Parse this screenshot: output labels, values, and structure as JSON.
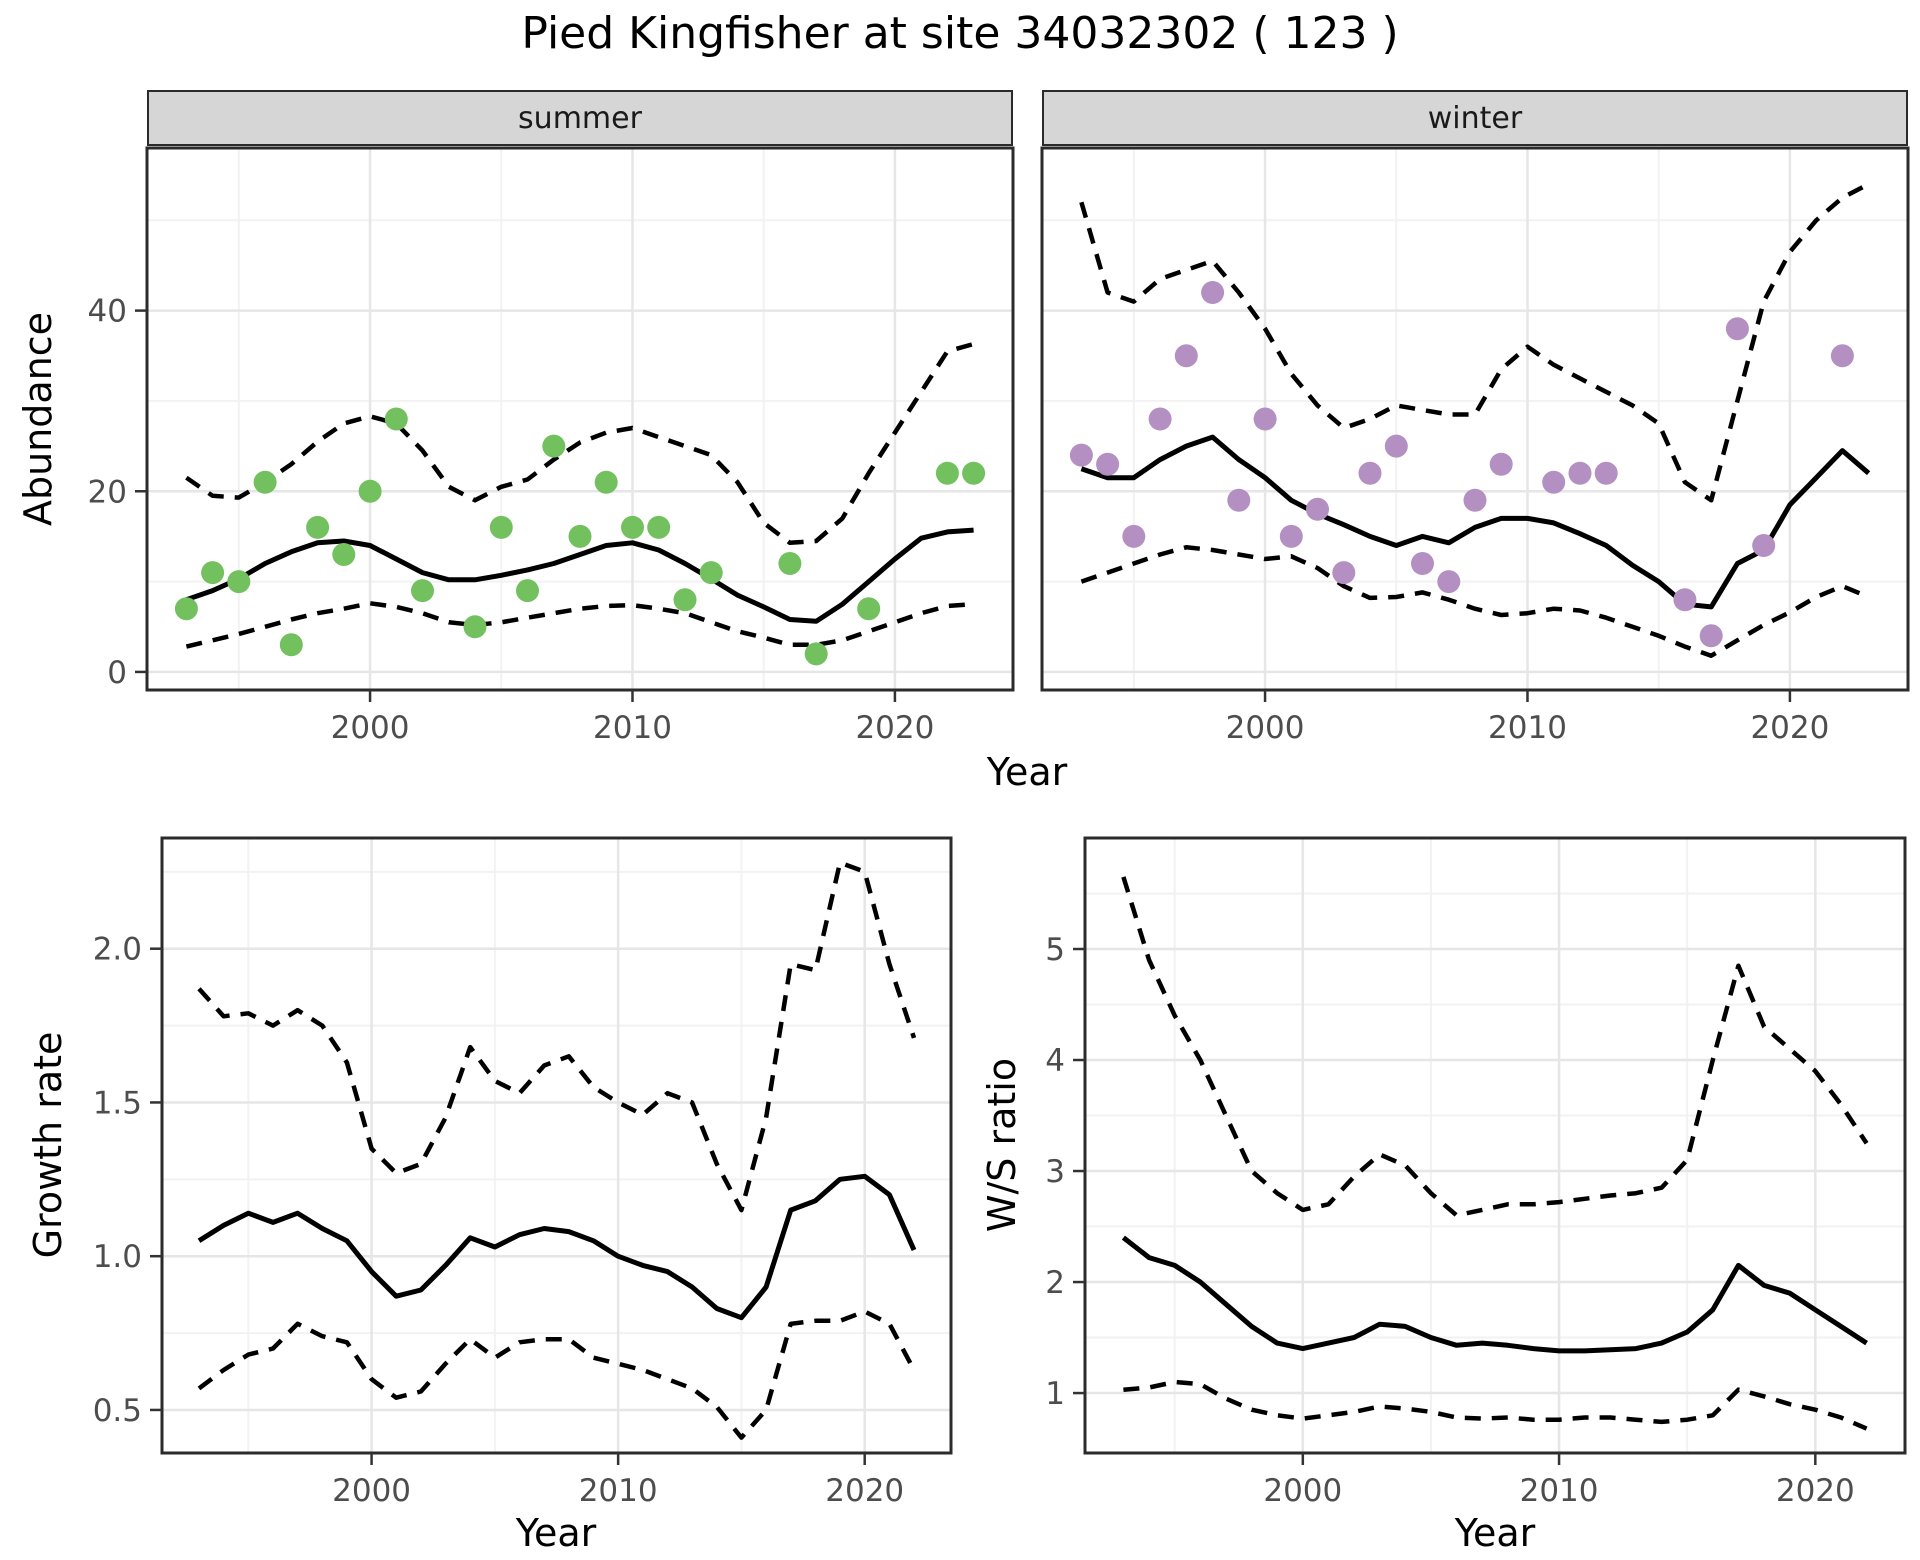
{
  "title": "Pied Kingfisher at site 34032302 ( 123 )",
  "labels": {
    "x": "Year",
    "abundance": "Abundance",
    "growth": "Growth rate",
    "ws": "W/S ratio"
  },
  "facets": [
    "summer",
    "winter"
  ],
  "colors": {
    "summer_point": "#72c05e",
    "winter_point": "#b48fc1",
    "strip_bg": "#d6d6d6",
    "panel_border": "#2b2b2b",
    "grid_major": "#e6e6e6",
    "grid_minor": "#f2f2f2",
    "line": "#000000",
    "tick_text": "#4d4d4d"
  },
  "chart_data": [
    {
      "id": "abundance-summer",
      "type": "line",
      "facet": "summer",
      "ylabel": "Abundance",
      "xlabel": "Year",
      "xlim": [
        1991.5,
        2024.5
      ],
      "ylim": [
        -2,
        58
      ],
      "xticks": [
        2000,
        2010,
        2020
      ],
      "xtick_labels": [
        "2000",
        "2010",
        "2020"
      ],
      "xminor": [
        1995,
        2005,
        2015
      ],
      "yticks": [
        0,
        20,
        40
      ],
      "ytick_labels": [
        "0",
        "20",
        "40"
      ],
      "yminor": [
        10,
        30,
        50
      ],
      "years": [
        1993,
        1994,
        1995,
        1996,
        1997,
        1998,
        1999,
        2000,
        2001,
        2002,
        2003,
        2004,
        2005,
        2006,
        2007,
        2008,
        2009,
        2010,
        2011,
        2012,
        2013,
        2014,
        2015,
        2016,
        2017,
        2018,
        2019,
        2020,
        2021,
        2022,
        2023
      ],
      "series": [
        {
          "name": "mean",
          "style": "solid",
          "values": [
            8.0,
            9.0,
            10.3,
            12.0,
            13.3,
            14.3,
            14.5,
            14.0,
            12.5,
            11.0,
            10.2,
            10.2,
            10.7,
            11.3,
            12.0,
            13.0,
            14.0,
            14.3,
            13.5,
            12.0,
            10.3,
            8.5,
            7.2,
            5.8,
            5.6,
            7.5,
            10.0,
            12.5,
            14.8,
            15.5,
            15.7
          ]
        },
        {
          "name": "lower_ci",
          "style": "dashed",
          "values": [
            2.8,
            3.5,
            4.2,
            5.0,
            5.8,
            6.5,
            7.0,
            7.6,
            7.2,
            6.5,
            5.5,
            5.2,
            5.5,
            6.0,
            6.5,
            7.0,
            7.3,
            7.4,
            7.0,
            6.5,
            5.5,
            4.5,
            3.8,
            3.0,
            3.0,
            3.5,
            4.5,
            5.5,
            6.5,
            7.3,
            7.5
          ]
        },
        {
          "name": "upper_ci",
          "style": "dashed",
          "values": [
            21.5,
            19.5,
            19.3,
            21.0,
            23.0,
            25.5,
            27.5,
            28.3,
            27.5,
            24.5,
            20.5,
            19.0,
            20.5,
            21.3,
            23.5,
            25.4,
            26.5,
            27.0,
            26.0,
            25.0,
            24.0,
            21.0,
            16.5,
            14.3,
            14.5,
            17.0,
            22.0,
            26.5,
            31.0,
            35.5,
            36.3
          ]
        }
      ],
      "points": {
        "color_key": "summer_point",
        "years": [
          1993,
          1994,
          1995,
          1996,
          1997,
          1998,
          1999,
          2000,
          2001,
          2002,
          2004,
          2005,
          2006,
          2007,
          2008,
          2009,
          2010,
          2011,
          2012,
          2013,
          2016,
          2017,
          2019,
          2022,
          2023
        ],
        "values": [
          7,
          11,
          10,
          21,
          3,
          16,
          13,
          20,
          28,
          9,
          5,
          16,
          9,
          25,
          15,
          21,
          16,
          16,
          8,
          11,
          12,
          2,
          7,
          22,
          22
        ]
      }
    },
    {
      "id": "abundance-winter",
      "type": "line",
      "facet": "winter",
      "ylabel": "Abundance",
      "xlabel": "Year",
      "xlim": [
        1991.5,
        2024.5
      ],
      "ylim": [
        -2,
        58
      ],
      "xticks": [
        2000,
        2010,
        2020
      ],
      "xtick_labels": [
        "2000",
        "2010",
        "2020"
      ],
      "xminor": [
        1995,
        2005,
        2015
      ],
      "yticks": [
        0,
        20,
        40
      ],
      "ytick_labels": [
        "0",
        "20",
        "40"
      ],
      "yminor": [
        10,
        30,
        50
      ],
      "years": [
        1993,
        1994,
        1995,
        1996,
        1997,
        1998,
        1999,
        2000,
        2001,
        2002,
        2003,
        2004,
        2005,
        2006,
        2007,
        2008,
        2009,
        2010,
        2011,
        2012,
        2013,
        2014,
        2015,
        2016,
        2017,
        2018,
        2019,
        2020,
        2021,
        2022,
        2023
      ],
      "series": [
        {
          "name": "mean",
          "style": "solid",
          "values": [
            22.5,
            21.5,
            21.5,
            23.5,
            25.0,
            26.0,
            23.5,
            21.5,
            19.0,
            17.5,
            16.3,
            15.0,
            14.0,
            15.0,
            14.3,
            16.0,
            17.0,
            17.0,
            16.5,
            15.3,
            14.0,
            11.8,
            10.0,
            7.5,
            7.2,
            12.0,
            13.5,
            18.5,
            21.5,
            24.5,
            22.0
          ]
        },
        {
          "name": "lower_ci",
          "style": "dashed",
          "values": [
            10.0,
            11.0,
            12.0,
            13.0,
            13.8,
            13.5,
            13.0,
            12.5,
            12.8,
            11.5,
            9.5,
            8.2,
            8.3,
            8.8,
            8.0,
            7.0,
            6.3,
            6.5,
            7.0,
            6.8,
            6.0,
            5.0,
            4.0,
            2.8,
            1.8,
            3.5,
            5.2,
            6.6,
            8.3,
            9.5,
            8.3
          ]
        },
        {
          "name": "upper_ci",
          "style": "dashed",
          "values": [
            52.0,
            42.0,
            41.0,
            43.5,
            44.5,
            45.5,
            42.0,
            38.0,
            33.0,
            29.5,
            27.0,
            28.0,
            29.5,
            29.0,
            28.5,
            28.5,
            33.5,
            36.0,
            34.0,
            32.5,
            31.0,
            29.5,
            27.5,
            21.0,
            19.0,
            30.0,
            41.0,
            46.5,
            50.0,
            52.5,
            54.0
          ]
        }
      ],
      "points": {
        "color_key": "winter_point",
        "years": [
          1993,
          1994,
          1995,
          1996,
          1997,
          1998,
          1999,
          2000,
          2001,
          2002,
          2003,
          2004,
          2005,
          2006,
          2007,
          2008,
          2009,
          2011,
          2012,
          2013,
          2016,
          2017,
          2018,
          2019,
          2022
        ],
        "values": [
          24,
          23,
          15,
          28,
          35,
          42,
          19,
          28,
          15,
          18,
          11,
          22,
          25,
          12,
          10,
          19,
          23,
          21,
          22,
          22,
          8,
          4,
          38,
          14,
          35
        ]
      }
    },
    {
      "id": "growth-rate",
      "type": "line",
      "facet": null,
      "ylabel": "Growth rate",
      "xlabel": "Year",
      "xlim": [
        1991.5,
        2023.5
      ],
      "ylim": [
        0.36,
        2.36
      ],
      "xticks": [
        2000,
        2010,
        2020
      ],
      "xtick_labels": [
        "2000",
        "2010",
        "2020"
      ],
      "xminor": [
        1995,
        2005,
        2015
      ],
      "yticks": [
        0.5,
        1.0,
        1.5,
        2.0
      ],
      "ytick_labels": [
        "0.5",
        "1.0",
        "1.5",
        "2.0"
      ],
      "yminor": [
        0.75,
        1.25,
        1.75,
        2.25
      ],
      "years": [
        1993,
        1994,
        1995,
        1996,
        1997,
        1998,
        1999,
        2000,
        2001,
        2002,
        2003,
        2004,
        2005,
        2006,
        2007,
        2008,
        2009,
        2010,
        2011,
        2012,
        2013,
        2014,
        2015,
        2016,
        2017,
        2018,
        2019,
        2020,
        2021,
        2022
      ],
      "series": [
        {
          "name": "mean",
          "style": "solid",
          "values": [
            1.05,
            1.1,
            1.14,
            1.11,
            1.14,
            1.09,
            1.05,
            0.95,
            0.87,
            0.89,
            0.97,
            1.06,
            1.03,
            1.07,
            1.09,
            1.08,
            1.05,
            1.0,
            0.97,
            0.95,
            0.9,
            0.83,
            0.8,
            0.9,
            1.15,
            1.18,
            1.25,
            1.26,
            1.2,
            1.02
          ]
        },
        {
          "name": "lower_ci",
          "style": "dashed",
          "values": [
            0.57,
            0.63,
            0.68,
            0.7,
            0.78,
            0.74,
            0.72,
            0.6,
            0.54,
            0.56,
            0.65,
            0.73,
            0.67,
            0.72,
            0.73,
            0.73,
            0.67,
            0.65,
            0.63,
            0.6,
            0.57,
            0.51,
            0.41,
            0.5,
            0.78,
            0.79,
            0.79,
            0.82,
            0.78,
            0.63
          ]
        },
        {
          "name": "upper_ci",
          "style": "dashed",
          "values": [
            1.87,
            1.78,
            1.79,
            1.75,
            1.8,
            1.75,
            1.63,
            1.35,
            1.27,
            1.3,
            1.45,
            1.68,
            1.57,
            1.53,
            1.62,
            1.65,
            1.55,
            1.5,
            1.46,
            1.53,
            1.5,
            1.3,
            1.15,
            1.45,
            1.95,
            1.93,
            2.28,
            2.25,
            1.95,
            1.71
          ]
        }
      ],
      "points": null
    },
    {
      "id": "winter-summer-ratio",
      "type": "line",
      "facet": null,
      "ylabel": "W/S ratio",
      "xlabel": "Year",
      "xlim": [
        1991.5,
        2023.5
      ],
      "ylim": [
        0.46,
        6.0
      ],
      "xticks": [
        2000,
        2010,
        2020
      ],
      "xtick_labels": [
        "2000",
        "2010",
        "2020"
      ],
      "xminor": [
        1995,
        2005,
        2015
      ],
      "yticks": [
        1,
        2,
        3,
        4,
        5
      ],
      "ytick_labels": [
        "1",
        "2",
        "3",
        "4",
        "5"
      ],
      "yminor": [
        1.5,
        2.5,
        3.5,
        4.5,
        5.5
      ],
      "years": [
        1993,
        1994,
        1995,
        1996,
        1997,
        1998,
        1999,
        2000,
        2001,
        2002,
        2003,
        2004,
        2005,
        2006,
        2007,
        2008,
        2009,
        2010,
        2011,
        2012,
        2013,
        2014,
        2015,
        2016,
        2017,
        2018,
        2019,
        2020,
        2021,
        2022
      ],
      "series": [
        {
          "name": "mean",
          "style": "solid",
          "values": [
            2.4,
            2.22,
            2.15,
            2.0,
            1.8,
            1.6,
            1.45,
            1.4,
            1.45,
            1.5,
            1.62,
            1.6,
            1.5,
            1.43,
            1.45,
            1.43,
            1.4,
            1.38,
            1.38,
            1.39,
            1.4,
            1.45,
            1.55,
            1.75,
            2.15,
            1.97,
            1.9,
            1.75,
            1.6,
            1.45
          ]
        },
        {
          "name": "lower_ci",
          "style": "dashed",
          "values": [
            1.03,
            1.05,
            1.1,
            1.08,
            0.95,
            0.85,
            0.8,
            0.77,
            0.8,
            0.83,
            0.88,
            0.86,
            0.83,
            0.78,
            0.77,
            0.78,
            0.76,
            0.76,
            0.78,
            0.78,
            0.76,
            0.74,
            0.76,
            0.8,
            1.03,
            0.97,
            0.9,
            0.85,
            0.78,
            0.68
          ]
        },
        {
          "name": "upper_ci",
          "style": "dashed",
          "values": [
            5.65,
            4.9,
            4.4,
            4.0,
            3.5,
            3.0,
            2.8,
            2.65,
            2.7,
            2.95,
            3.15,
            3.05,
            2.8,
            2.6,
            2.65,
            2.7,
            2.7,
            2.72,
            2.75,
            2.78,
            2.8,
            2.85,
            3.1,
            4.0,
            4.85,
            4.3,
            4.1,
            3.9,
            3.6,
            3.25
          ]
        }
      ],
      "points": null
    }
  ]
}
